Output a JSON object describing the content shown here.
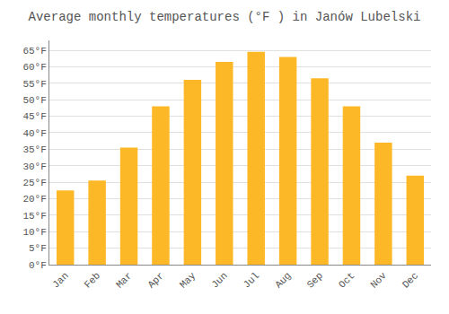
{
  "chart_data": {
    "type": "bar",
    "title": "Average monthly temperatures (°F ) in Janów Lubelski",
    "categories": [
      "Jan",
      "Feb",
      "Mar",
      "Apr",
      "May",
      "Jun",
      "Jul",
      "Aug",
      "Sep",
      "Oct",
      "Nov",
      "Dec"
    ],
    "values": [
      22.5,
      25.5,
      35.5,
      48.0,
      56.0,
      61.5,
      64.5,
      63.0,
      56.5,
      48.0,
      37.0,
      27.0
    ],
    "color": "#FDB827",
    "ylim": [
      0,
      68
    ],
    "yticks": [
      {
        "value": 0,
        "label": "0°F"
      },
      {
        "value": 5,
        "label": "5°F"
      },
      {
        "value": 10,
        "label": "10°F"
      },
      {
        "value": 15,
        "label": "15°F"
      },
      {
        "value": 20,
        "label": "20°F"
      },
      {
        "value": 25,
        "label": "25°F"
      },
      {
        "value": 30,
        "label": "30°F"
      },
      {
        "value": 35,
        "label": "35°F"
      },
      {
        "value": 40,
        "label": "40°F"
      },
      {
        "value": 45,
        "label": "45°F"
      },
      {
        "value": 50,
        "label": "50°F"
      },
      {
        "value": 55,
        "label": "55°F"
      },
      {
        "value": 60,
        "label": "60°F"
      },
      {
        "value": 65,
        "label": "65°F"
      }
    ],
    "grid": true
  }
}
